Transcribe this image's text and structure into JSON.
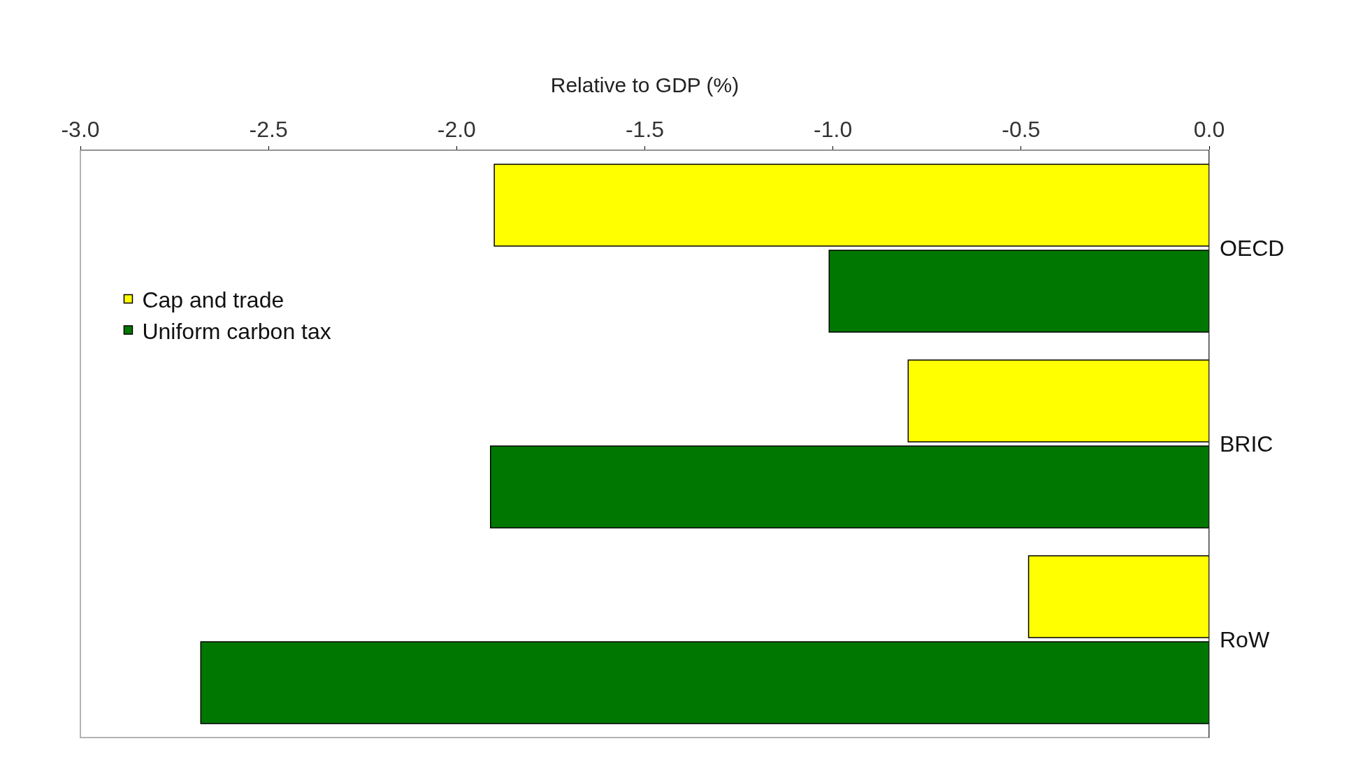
{
  "chart_data": {
    "type": "bar",
    "orientation": "horizontal",
    "xlabel": "Relative to GDP (%)",
    "categories": [
      "OECD",
      "BRIC",
      "RoW"
    ],
    "series": [
      {
        "name": "Cap and trade",
        "color": "#ffff00",
        "values": [
          -1.9,
          -0.8,
          -0.48
        ]
      },
      {
        "name": "Uniform carbon tax",
        "color": "#007700",
        "values": [
          -1.01,
          -1.91,
          -2.68
        ]
      }
    ],
    "xlim": [
      -3.0,
      0.0
    ],
    "xticks": [
      {
        "value": -3,
        "label": "-3.0"
      },
      {
        "value": -2.5,
        "label": "-2.5"
      },
      {
        "value": -2,
        "label": "-2.0"
      },
      {
        "value": -1.5,
        "label": "-1.5"
      },
      {
        "value": -1,
        "label": "-1.0"
      },
      {
        "value": -0.5,
        "label": "-0.5"
      },
      {
        "value": 0,
        "label": "0.0"
      }
    ],
    "legend": "left"
  }
}
